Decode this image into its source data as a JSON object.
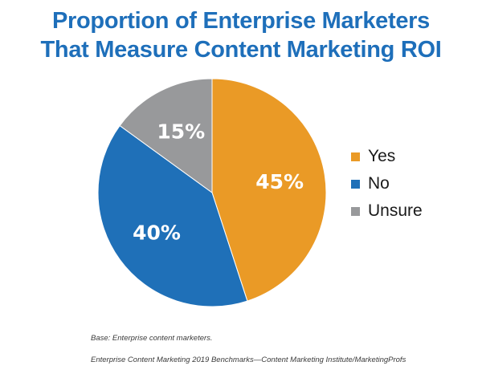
{
  "chart_data": {
    "type": "pie",
    "title_lines": [
      "Proportion of Enterprise Marketers",
      "That Measure Content Marketing ROI"
    ],
    "slices": [
      {
        "label": "Yes",
        "value": 45,
        "display": "45%",
        "color": "#ea9a26"
      },
      {
        "label": "No",
        "value": 40,
        "display": "40%",
        "color": "#1f70b8"
      },
      {
        "label": "Unsure",
        "value": 15,
        "display": "15%",
        "color": "#98999b"
      }
    ],
    "legend_placement": "right",
    "start": "12 o'clock, clockwise"
  },
  "footnotes": {
    "base": "Base: Enterprise content marketers.",
    "source": "Enterprise Content Marketing 2019 Benchmarks—Content Marketing Institute/MarketingProfs"
  },
  "colors": {
    "title": "#1e6fba"
  }
}
